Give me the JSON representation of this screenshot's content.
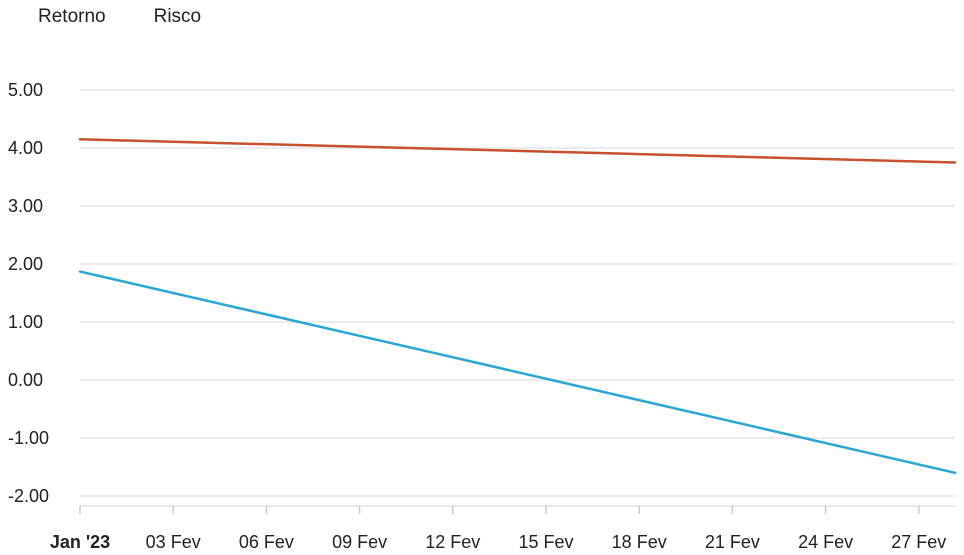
{
  "chart_data": {
    "type": "line",
    "legend": [
      "Retorno",
      "Risco"
    ],
    "x": [
      "Jan '23",
      "03 Fev",
      "06 Fev",
      "09 Fev",
      "12 Fev",
      "15 Fev",
      "18 Fev",
      "21 Fev",
      "24 Fev",
      "27 Fev"
    ],
    "xlabel": "",
    "ylabel": "",
    "ylim": [
      -2.0,
      5.0
    ],
    "yticks": [
      "5.00",
      "4.00",
      "3.00",
      "2.00",
      "1.00",
      "0.00",
      "-1.00",
      "-2.00"
    ],
    "grid": true,
    "series": [
      {
        "name": "",
        "color": "#c9502f",
        "start": 4.15,
        "end": 3.75
      },
      {
        "name": "",
        "color": "#2aa6d6",
        "start": 1.87,
        "end": -1.6
      }
    ]
  }
}
